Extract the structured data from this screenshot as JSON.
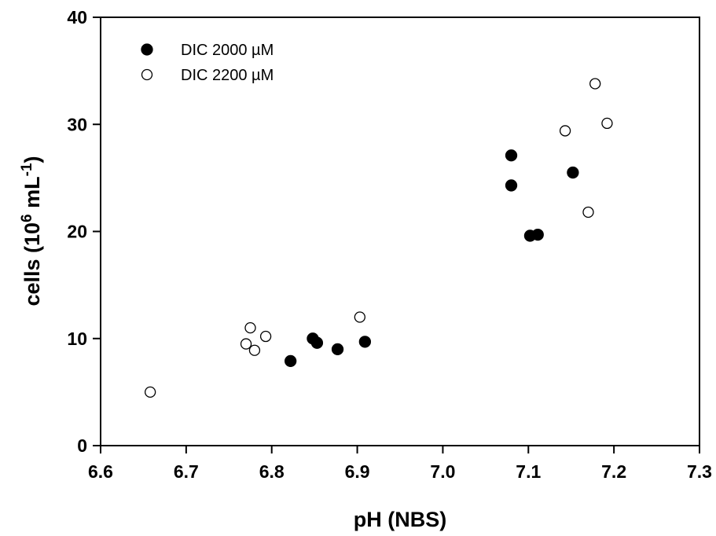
{
  "chart_data": {
    "type": "scatter",
    "title": "",
    "xlabel": "pH (NBS)",
    "ylabel": "cells (10",
    "ylabel_sup1": "6",
    "ylabel_mid": " mL",
    "ylabel_sup2": "-1",
    "ylabel_end": ")",
    "xlim": [
      6.6,
      7.3
    ],
    "ylim": [
      0,
      40
    ],
    "x_ticks": [
      "6.6",
      "6.7",
      "6.8",
      "6.9",
      "7.0",
      "7.1",
      "7.2",
      "7.3"
    ],
    "y_ticks": [
      "0",
      "10",
      "20",
      "30",
      "40"
    ],
    "grid": false,
    "legend_position": "top-left",
    "series": [
      {
        "name": "DIC 2000 µM",
        "marker": "filled-circle",
        "color": "#000000",
        "points": [
          {
            "x": 6.822,
            "y": 7.9
          },
          {
            "x": 6.848,
            "y": 10.0
          },
          {
            "x": 6.853,
            "y": 9.6
          },
          {
            "x": 6.877,
            "y": 9.0
          },
          {
            "x": 6.909,
            "y": 9.7
          },
          {
            "x": 7.08,
            "y": 27.1
          },
          {
            "x": 7.08,
            "y": 24.3
          },
          {
            "x": 7.102,
            "y": 19.6
          },
          {
            "x": 7.111,
            "y": 19.7
          },
          {
            "x": 7.152,
            "y": 25.5
          }
        ]
      },
      {
        "name": "DIC 2200 µM",
        "marker": "open-circle",
        "color": "#000000",
        "points": [
          {
            "x": 6.658,
            "y": 5.0
          },
          {
            "x": 6.77,
            "y": 9.5
          },
          {
            "x": 6.775,
            "y": 11.0
          },
          {
            "x": 6.78,
            "y": 8.9
          },
          {
            "x": 6.793,
            "y": 10.2
          },
          {
            "x": 6.903,
            "y": 12.0
          },
          {
            "x": 7.143,
            "y": 29.4
          },
          {
            "x": 7.17,
            "y": 21.8
          },
          {
            "x": 7.178,
            "y": 33.8
          },
          {
            "x": 7.192,
            "y": 30.1
          }
        ]
      }
    ]
  }
}
